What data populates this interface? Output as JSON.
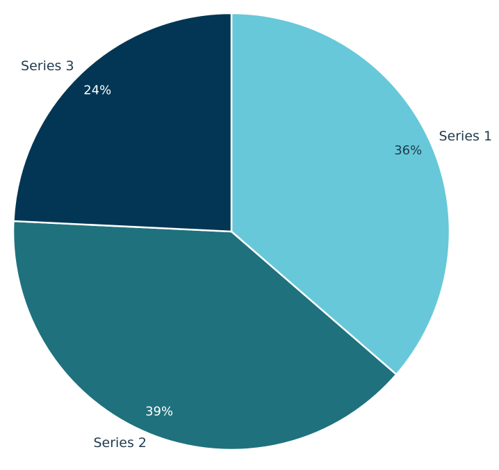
{
  "chart_data": {
    "type": "pie",
    "title": "",
    "categories": [
      "Series 1",
      "Series 2",
      "Series 3"
    ],
    "values": [
      36,
      39,
      24
    ],
    "percent_labels": [
      "36%",
      "39%",
      "24%"
    ],
    "start_angle_deg": 0,
    "direction": "clockwise",
    "colors": [
      "#67c8d9",
      "#1f717d",
      "#033654"
    ],
    "percent_label_colors": [
      "#1f3a4d",
      "#ffffff",
      "#ffffff"
    ],
    "legend": "none",
    "label_placement": "outside-with-percent-inside"
  }
}
